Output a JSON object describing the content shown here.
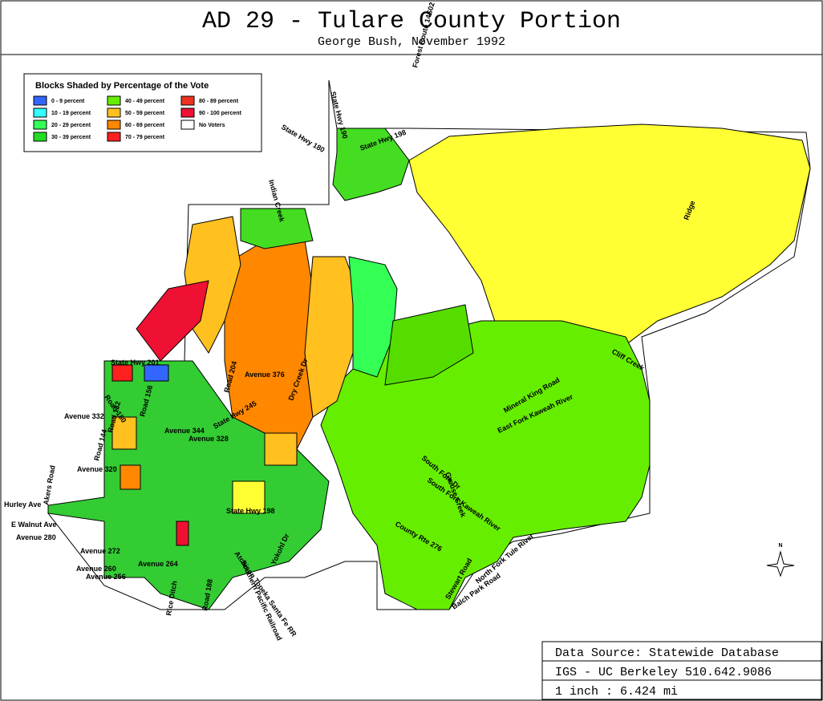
{
  "header": {
    "title": "AD 29 - Tulare County Portion",
    "subtitle": "George Bush, November 1992"
  },
  "legend": {
    "title": "Blocks Shaded by Percentage of the Vote",
    "items": [
      {
        "label": "0 - 9 percent",
        "color": "#3366ff"
      },
      {
        "label": "10 - 19 percent",
        "color": "#33ffff"
      },
      {
        "label": "20 - 29 percent",
        "color": "#33ff55"
      },
      {
        "label": "30 - 39 percent",
        "color": "#22dd22"
      },
      {
        "label": "40 - 49 percent",
        "color": "#66ee00"
      },
      {
        "label": "50 - 59 percent",
        "color": "#ffc020"
      },
      {
        "label": "60 - 69 percent",
        "color": "#ff8800"
      },
      {
        "label": "70 - 79 percent",
        "color": "#ff2020"
      },
      {
        "label": "80 - 89 percent",
        "color": "#ee3322"
      },
      {
        "label": "90 - 100 percent",
        "color": "#ee1133"
      },
      {
        "label": "No Voters",
        "color": "#ffffff"
      }
    ]
  },
  "map_labels": [
    "State Hwy 190",
    "Forest Route 14S02",
    "State Hwy 180",
    "State Hwy 198",
    "Indian Creek",
    "Ridge",
    "Cliff Creek",
    "Mineral King Road",
    "East Fork Kaweah River",
    "South Fork Dr",
    "South Fork Kaweah River",
    "Grouse Creek",
    "County Rte 276",
    "North Fork Tule River",
    "Stewart Road",
    "Balch Park Road",
    "Avenue 376",
    "Dry Creek Dr",
    "Road 204",
    "State Hwy 201",
    "Avenue 332",
    "Road 144",
    "Road 132",
    "Road 156",
    "Road 180",
    "Avenue 344",
    "Avenue 328",
    "Avenue 320",
    "Akers Road",
    "Hurley Ave",
    "E Walnut Ave",
    "Avenue 280",
    "Avenue 272",
    "Avenue 260",
    "Avenue 256",
    "Avenue 264",
    "Rice Ditch",
    "Road 188",
    "Atchison Topeka Santa Fe RR",
    "Southern Pacific Railroad",
    "State Hwy 198",
    "State Hwy 245",
    "Yokohl Dr"
  ],
  "source": [
    "Data Source: Statewide Database",
    "IGS - UC Berkeley 510.642.9086",
    "1 inch : 6.424 mi"
  ],
  "north": "N"
}
